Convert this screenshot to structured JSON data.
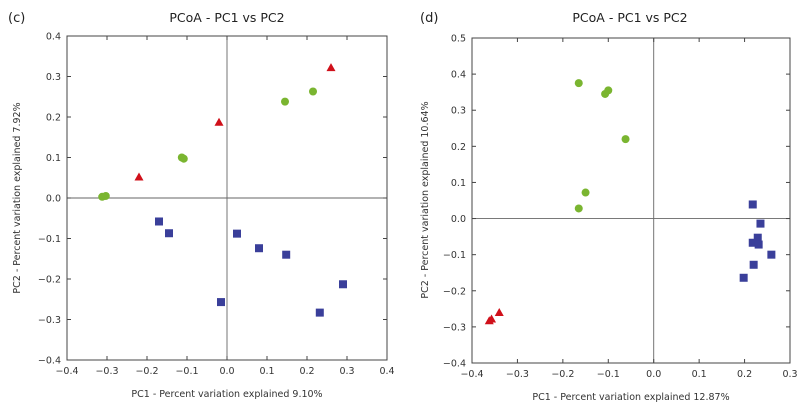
{
  "colors": {
    "group_green": "#7ab530",
    "group_red": "#d0101a",
    "group_blue": "#3a3f9a"
  },
  "chart_data": [
    {
      "type": "scatter",
      "panel_label": "(c)",
      "title": "PCoA - PC1 vs PC2",
      "xlabel": "PC1 - Percent variation explained 9.10%",
      "ylabel": "PC2 - Percent variation explained 7.92%",
      "xlim": [
        -0.4,
        0.4
      ],
      "ylim": [
        -0.4,
        0.4
      ],
      "xticks": [
        -0.4,
        -0.3,
        -0.2,
        -0.1,
        0.0,
        0.1,
        0.2,
        0.3,
        0.4
      ],
      "yticks": [
        -0.4,
        -0.3,
        -0.2,
        -0.1,
        0.0,
        0.1,
        0.2,
        0.3,
        0.4
      ],
      "xtick_labels": [
        "−0.4",
        "−0.3",
        "−0.2",
        "−0.1",
        "0.0",
        "0.1",
        "0.2",
        "0.3",
        "0.4"
      ],
      "ytick_labels": [
        "−0.4",
        "−0.3",
        "−0.2",
        "−0.1",
        "0.0",
        "0.1",
        "0.2",
        "0.3",
        "0.4"
      ],
      "grid": false,
      "zero_lines": true,
      "series": [
        {
          "name": "green-group",
          "marker": "circle",
          "color": "#7ab530",
          "points": [
            [
              -0.312,
              0.003
            ],
            [
              -0.303,
              0.005
            ],
            [
              -0.113,
              0.1
            ],
            [
              -0.108,
              0.097
            ],
            [
              0.145,
              0.238
            ],
            [
              0.215,
              0.263
            ]
          ]
        },
        {
          "name": "red-group",
          "marker": "triangle",
          "color": "#d0101a",
          "points": [
            [
              -0.22,
              0.052
            ],
            [
              -0.02,
              0.187
            ],
            [
              0.26,
              0.322
            ]
          ]
        },
        {
          "name": "blue-group",
          "marker": "square",
          "color": "#3a3f9a",
          "points": [
            [
              -0.17,
              -0.058
            ],
            [
              -0.145,
              -0.087
            ],
            [
              -0.015,
              -0.257
            ],
            [
              0.025,
              -0.088
            ],
            [
              0.08,
              -0.124
            ],
            [
              0.148,
              -0.14
            ],
            [
              0.232,
              -0.283
            ],
            [
              0.29,
              -0.213
            ]
          ]
        }
      ]
    },
    {
      "type": "scatter",
      "panel_label": "(d)",
      "title": "PCoA - PC1 vs PC2",
      "xlabel": "PC1 - Percent variation explained 12.87%",
      "ylabel": "PC2 - Percent variation explained 10.64%",
      "xlim": [
        -0.4,
        0.3
      ],
      "ylim": [
        -0.4,
        0.5
      ],
      "xticks": [
        -0.4,
        -0.3,
        -0.2,
        -0.1,
        0.0,
        0.1,
        0.2,
        0.3
      ],
      "yticks": [
        -0.4,
        -0.3,
        -0.2,
        -0.1,
        0.0,
        0.1,
        0.2,
        0.3,
        0.4,
        0.5
      ],
      "xtick_labels": [
        "−0.4",
        "−0.3",
        "−0.2",
        "−0.1",
        "0.0",
        "0.1",
        "0.2",
        "0.3"
      ],
      "ytick_labels": [
        "−0.4",
        "−0.3",
        "−0.2",
        "−0.1",
        "0.0",
        "0.1",
        "0.2",
        "0.3",
        "0.4",
        "0.5"
      ],
      "grid": false,
      "zero_lines": true,
      "series": [
        {
          "name": "green-group",
          "marker": "circle",
          "color": "#7ab530",
          "points": [
            [
              -0.165,
              0.375
            ],
            [
              -0.107,
              0.345
            ],
            [
              -0.1,
              0.355
            ],
            [
              -0.062,
              0.22
            ],
            [
              -0.15,
              0.072
            ],
            [
              -0.165,
              0.028
            ]
          ]
        },
        {
          "name": "red-group",
          "marker": "triangle",
          "color": "#d0101a",
          "points": [
            [
              -0.362,
              -0.283
            ],
            [
              -0.357,
              -0.278
            ],
            [
              -0.34,
              -0.26
            ]
          ]
        },
        {
          "name": "blue-group",
          "marker": "square",
          "color": "#3a3f9a",
          "points": [
            [
              0.218,
              0.039
            ],
            [
              0.235,
              -0.014
            ],
            [
              0.229,
              -0.053
            ],
            [
              0.218,
              -0.067
            ],
            [
              0.231,
              -0.072
            ],
            [
              0.259,
              -0.1
            ],
            [
              0.22,
              -0.128
            ],
            [
              0.198,
              -0.164
            ]
          ]
        }
      ]
    }
  ]
}
